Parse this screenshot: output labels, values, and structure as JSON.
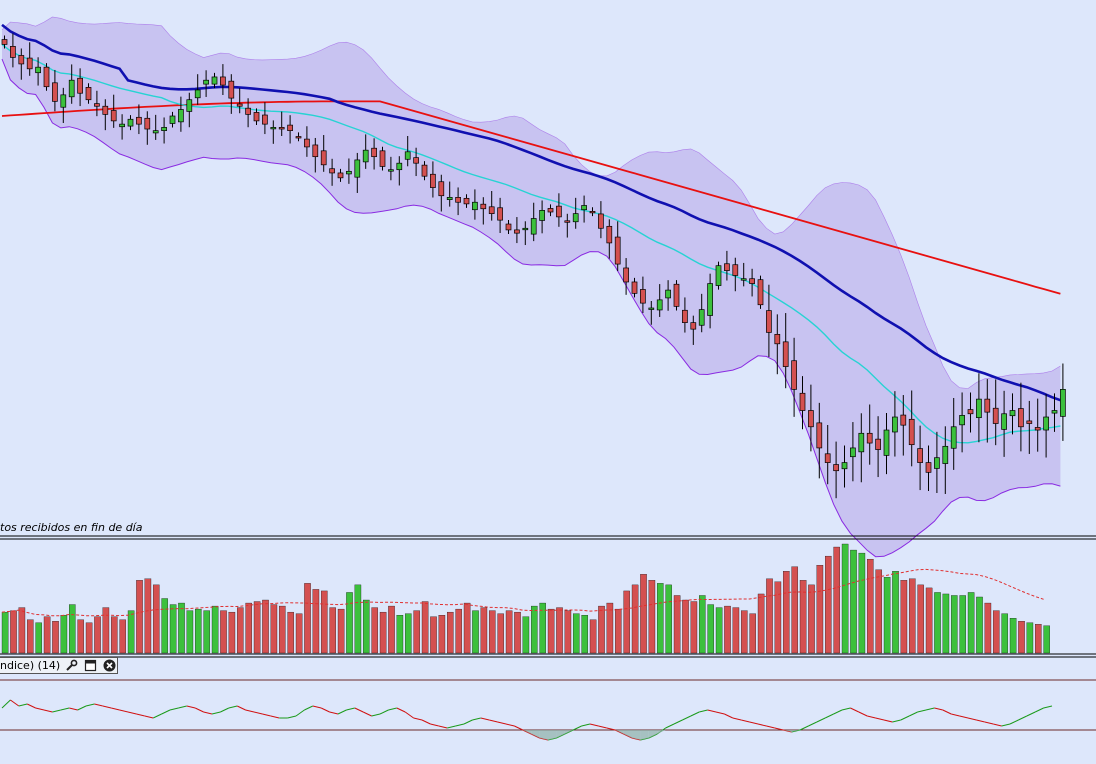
{
  "price_panel": {
    "footer_note": "tos recibidos en fin de día"
  },
  "indicator_panel": {
    "label": "ndice) (14)",
    "buttons": [
      {
        "icon": "wrench-icon"
      },
      {
        "icon": "window-icon"
      },
      {
        "icon": "close-icon"
      }
    ]
  },
  "colors": {
    "background": "#dde7fb",
    "bollinger_fill": "#c4bcef",
    "bollinger_border": "#8a2be2",
    "up_candle": "#3cc03c",
    "down_candle": "#d45050",
    "ma_short": "#27d3d3",
    "ma_medium": "#1010b0",
    "ma_long": "#e81010",
    "volume_avg": "#e03030"
  },
  "chart_data": [
    {
      "type": "candlestick",
      "panel": "price",
      "overlays": [
        "bollinger bands",
        "moving average (cyan)",
        "moving average (blue)",
        "moving average (red)"
      ],
      "closes": [
        100,
        99.2,
        98.8,
        98.5,
        98.6,
        97.4,
        96.5,
        96.9,
        97.8,
        97,
        96.6,
        96.2,
        95.7,
        95.3,
        95.1,
        95.4,
        95.1,
        94.8,
        94.7,
        94.9,
        95.6,
        96,
        96.6,
        97.2,
        97.8,
        98,
        97.5,
        96.7,
        96.2,
        95.7,
        95.3,
        95.1,
        94.9,
        94.8,
        94.7,
        94.3,
        93.7,
        93.1,
        92.6,
        92.1,
        91.8,
        92.2,
        92.9,
        93.5,
        93.1,
        92.5,
        92.3,
        92.7,
        93.4,
        92.7,
        91.9,
        91.2,
        90.7,
        90.6,
        90.3,
        90.2,
        90.3,
        89.9,
        89.6,
        89.2,
        88.6,
        88.4,
        88.7,
        89.3,
        89.8,
        89.7,
        89.4,
        89.1,
        89.6,
        90.1,
        89.7,
        88.7,
        87.8,
        86.5,
        85.4,
        84.7,
        84.1,
        83.8,
        84.3,
        84.9,
        83.9,
        82.9,
        82.5,
        83.7,
        85.3,
        86.4,
        86.1,
        85.8,
        85.6,
        85.3,
        84,
        82.3,
        81.6,
        80.2,
        78.8,
        77.5,
        76.5,
        75.2,
        74.3,
        73.8,
        74.3,
        75.2,
        76.1,
        75.5,
        75.1,
        76.3,
        77.1,
        76.6,
        75.4,
        74.3,
        73.7,
        74.6,
        75.3,
        76.5,
        77.2,
        77.3,
        78.2,
        77.4,
        76.7,
        77.3,
        77.5,
        76.5,
        76.7,
        76.3,
        77.1,
        77.5,
        78.8
      ],
      "dates_shown": false
    },
    {
      "type": "bar",
      "panel": "volume",
      "values": [
        27,
        28,
        30,
        22,
        20,
        24,
        21,
        25,
        32,
        22,
        20,
        24,
        30,
        24,
        22,
        28,
        48,
        49,
        45,
        36,
        32,
        33,
        28,
        29,
        28,
        31,
        28,
        27,
        30,
        33,
        34,
        35,
        32,
        31,
        27,
        26,
        46,
        42,
        41,
        30,
        29,
        40,
        45,
        35,
        30,
        27,
        31,
        25,
        26,
        28,
        34,
        24,
        25,
        27,
        29,
        33,
        28,
        30,
        28,
        26,
        28,
        27,
        24,
        31,
        33,
        29,
        30,
        28,
        26,
        25,
        22,
        31,
        33,
        29,
        41,
        45,
        52,
        48,
        46,
        45,
        38,
        35,
        34,
        38,
        32,
        30,
        31,
        30,
        28,
        26,
        39,
        49,
        47,
        54,
        57,
        48,
        45,
        58,
        64,
        70,
        72,
        68,
        66,
        62,
        55,
        50,
        54,
        48,
        49,
        45,
        43,
        40,
        39,
        38,
        38,
        40,
        37,
        33,
        28,
        26,
        23,
        21,
        20,
        19,
        18
      ],
      "average_line": "dashed"
    },
    {
      "type": "line",
      "panel": "indicator",
      "values": [
        56,
        60,
        57,
        58,
        56,
        55,
        54,
        55,
        56,
        55,
        57,
        58,
        57,
        56,
        55,
        54,
        53,
        52,
        51,
        53,
        55,
        56,
        57,
        56,
        54,
        53,
        54,
        56,
        57,
        55,
        54,
        53,
        52,
        51,
        51,
        52,
        55,
        57,
        56,
        54,
        53,
        55,
        56,
        54,
        52,
        53,
        55,
        56,
        54,
        51,
        50,
        48,
        47,
        46,
        47,
        48,
        50,
        51,
        50,
        49,
        48,
        47,
        45,
        43,
        41,
        40,
        41,
        43,
        45,
        47,
        48,
        47,
        46,
        45,
        43,
        41,
        40,
        41,
        43,
        46,
        48,
        50,
        52,
        54,
        55,
        54,
        53,
        51,
        50,
        49,
        48,
        47,
        46,
        45,
        44,
        45,
        47,
        49,
        51,
        53,
        55,
        56,
        54,
        52,
        51,
        50,
        49,
        50,
        52,
        54,
        55,
        56,
        55,
        53,
        52,
        51,
        50,
        49,
        48,
        47,
        48,
        50,
        52,
        54,
        56,
        57
      ]
    }
  ]
}
